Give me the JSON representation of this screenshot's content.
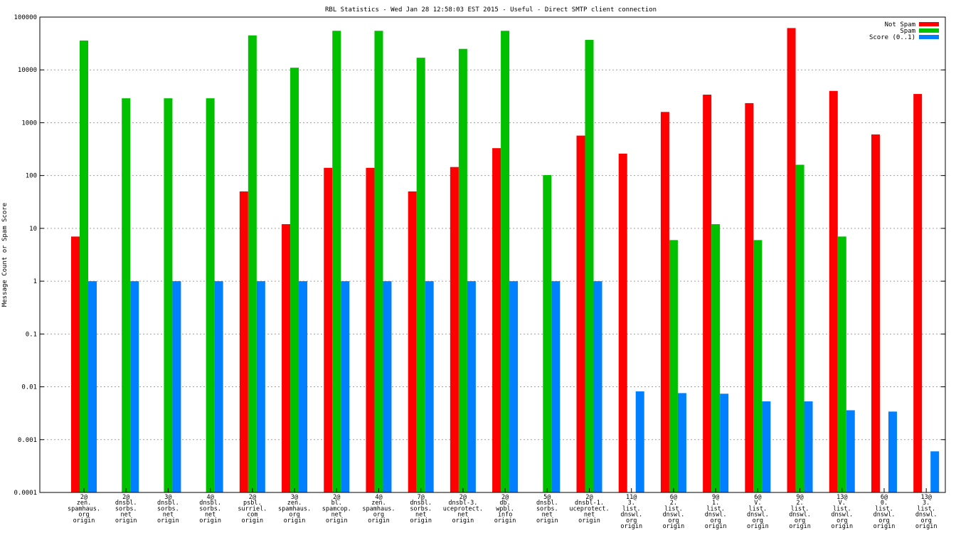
{
  "chart_data": {
    "type": "bar",
    "title": "RBL Statistics - Wed Jan 28 12:58:03 EST 2015 - Useful - Direct SMTP client connection",
    "xlabel": "",
    "ylabel": "Message Count or Spam Score",
    "yscale": "log",
    "ylim": [
      0.0001,
      100000
    ],
    "yticks": [
      {
        "value": 0.0001,
        "label": "0.0001"
      },
      {
        "value": 0.001,
        "label": "0.001"
      },
      {
        "value": 0.01,
        "label": "0.01"
      },
      {
        "value": 0.1,
        "label": "0.1"
      },
      {
        "value": 1,
        "label": "1"
      },
      {
        "value": 10,
        "label": "10"
      },
      {
        "value": 100,
        "label": "100"
      },
      {
        "value": 1000,
        "label": "1000"
      },
      {
        "value": 10000,
        "label": "10000"
      },
      {
        "value": 100000,
        "label": "100000"
      }
    ],
    "grid": true,
    "legend_position": "top-right",
    "categories": [
      [
        "2@",
        "zen.",
        "spamhaus.",
        "org",
        "origin"
      ],
      [
        "2@",
        "dnsbl.",
        "sorbs.",
        "net",
        "origin"
      ],
      [
        "3@",
        "dnsbl.",
        "sorbs.",
        "net",
        "origin"
      ],
      [
        "4@",
        "dnsbl.",
        "sorbs.",
        "net",
        "origin"
      ],
      [
        "2@",
        "psbl.",
        "surriel.",
        "com",
        "origin"
      ],
      [
        "3@",
        "zen.",
        "spamhaus.",
        "org",
        "origin"
      ],
      [
        "2@",
        "bl.",
        "spamcop.",
        "net",
        "origin"
      ],
      [
        "4@",
        "zen.",
        "spamhaus.",
        "org",
        "origin"
      ],
      [
        "7@",
        "dnsbl.",
        "sorbs.",
        "net",
        "origin"
      ],
      [
        "2@",
        "dnsbl-3.",
        "uceprotect.",
        "net",
        "origin"
      ],
      [
        "2@",
        "db.",
        "wpbl.",
        "info",
        "origin"
      ],
      [
        "5@",
        "dnsbl.",
        "sorbs.",
        "net",
        "origin"
      ],
      [
        "2@",
        "dnsbl-1.",
        "uceprotect.",
        "net",
        "origin"
      ],
      [
        "11@",
        "3.",
        "list.",
        "dnswl.",
        "org",
        "origin"
      ],
      [
        "6@",
        "2.",
        "list.",
        "dnswl.",
        "org",
        "origin"
      ],
      [
        "9@",
        "1.",
        "list.",
        "dnswl.",
        "org",
        "origin"
      ],
      [
        "6@",
        "V.",
        "list.",
        "dnswl.",
        "org",
        "origin"
      ],
      [
        "9@",
        "2.",
        "list.",
        "dnswl.",
        "org",
        "origin"
      ],
      [
        "13@",
        "V.",
        "list.",
        "dnswl.",
        "org",
        "origin"
      ],
      [
        "6@",
        "0.",
        "list.",
        "dnswl.",
        "org",
        "origin"
      ],
      [
        "13@",
        "3.",
        "list.",
        "dnswl.",
        "org",
        "origin"
      ]
    ],
    "series": [
      {
        "name": "Not Spam",
        "color": "#ff0000",
        "values": [
          7,
          null,
          null,
          null,
          50,
          12,
          140,
          140,
          50,
          145,
          330,
          null,
          570,
          260,
          1600,
          3400,
          2350,
          62000,
          4000,
          600,
          3500
        ]
      },
      {
        "name": "Spam",
        "color": "#00c000",
        "values": [
          36000,
          2900,
          2900,
          2900,
          45000,
          11000,
          55000,
          55000,
          17000,
          25000,
          55000,
          102,
          37000,
          null,
          6,
          12,
          6,
          160,
          7,
          null,
          null
        ]
      },
      {
        "name": "Score (0..1)",
        "color": "#0080ff",
        "values": [
          1,
          1,
          1,
          1,
          1,
          1,
          1,
          1,
          1,
          1,
          1,
          1,
          1,
          0.0082,
          0.0076,
          0.0074,
          0.0053,
          0.0053,
          0.0036,
          0.0034,
          0.0006
        ]
      }
    ]
  }
}
